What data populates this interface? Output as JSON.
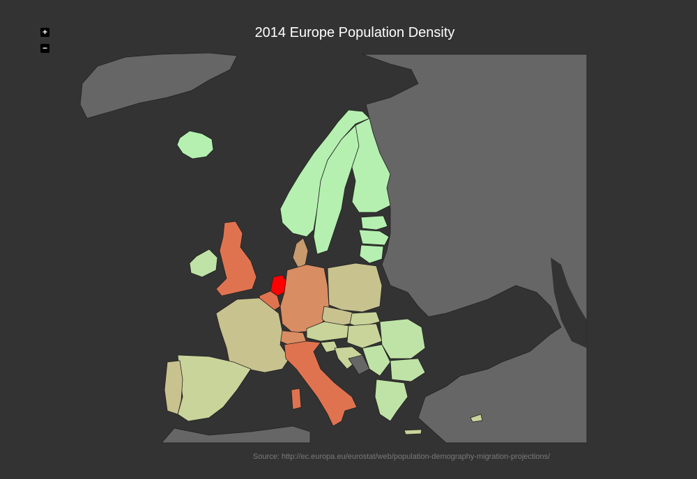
{
  "title": "2014 Europe Population Density",
  "source": "Source: http://ec.europa.eu/eurostat/web/population-demography-migration-projections/",
  "zoom": {
    "in_label": "+",
    "out_label": "−"
  },
  "colors": {
    "background": "#333333",
    "non_eu_land": "#666666",
    "very_high": "#ff0000",
    "high": "#e0734f",
    "medium_high": "#d98d62",
    "medium": "#c99a6d",
    "medium_low": "#c8c28f",
    "low": "#c9d49a",
    "lower": "#bfe3a6",
    "very_low": "#b5f0b0",
    "borders": "#222222"
  },
  "regions": [
    {
      "name": "Iceland",
      "level": "very_low"
    },
    {
      "name": "Norway",
      "level": "very_low"
    },
    {
      "name": "Sweden",
      "level": "very_low"
    },
    {
      "name": "Finland",
      "level": "very_low"
    },
    {
      "name": "Estonia",
      "level": "very_low"
    },
    {
      "name": "Latvia",
      "level": "very_low"
    },
    {
      "name": "Lithuania",
      "level": "very_low"
    },
    {
      "name": "Ireland",
      "level": "lower"
    },
    {
      "name": "United Kingdom",
      "level": "high"
    },
    {
      "name": "Netherlands",
      "level": "very_high"
    },
    {
      "name": "Belgium",
      "level": "high"
    },
    {
      "name": "Germany",
      "level": "medium_high"
    },
    {
      "name": "Denmark",
      "level": "medium"
    },
    {
      "name": "Poland",
      "level": "medium_low"
    },
    {
      "name": "Czechia",
      "level": "medium_low"
    },
    {
      "name": "France",
      "level": "medium_low"
    },
    {
      "name": "Spain",
      "level": "low"
    },
    {
      "name": "Portugal",
      "level": "medium_low"
    },
    {
      "name": "Italy",
      "level": "high"
    },
    {
      "name": "Switzerland",
      "level": "medium_high"
    },
    {
      "name": "Austria",
      "level": "low"
    },
    {
      "name": "Hungary",
      "level": "low"
    },
    {
      "name": "Slovakia",
      "level": "low"
    },
    {
      "name": "Slovenia",
      "level": "low"
    },
    {
      "name": "Croatia",
      "level": "low"
    },
    {
      "name": "Romania",
      "level": "lower"
    },
    {
      "name": "Bulgaria",
      "level": "lower"
    },
    {
      "name": "Greece",
      "level": "lower"
    },
    {
      "name": "Serbia",
      "level": "lower"
    }
  ]
}
